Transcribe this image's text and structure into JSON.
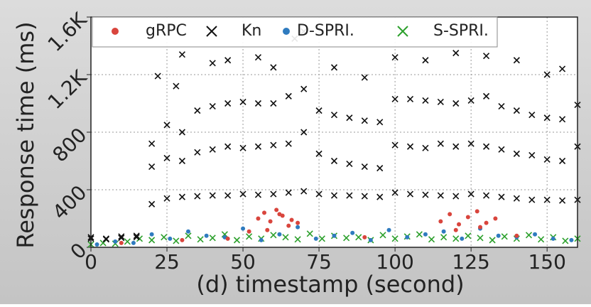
{
  "chart_data": {
    "type": "scatter",
    "title": "(d) timestamp (second)",
    "y_label": "Response time (ms)",
    "xlim": [
      0,
      160
    ],
    "ylim": [
      0,
      1600
    ],
    "xticks": [
      0,
      25,
      50,
      75,
      100,
      125,
      150
    ],
    "yticks": [
      0,
      400,
      800,
      {
        "value": 1200,
        "label": "1.2K"
      },
      {
        "value": 1600,
        "label": "1.6K"
      }
    ],
    "grid": true,
    "legend": "top",
    "series": [
      {
        "name": "gRPC",
        "color": "#d9453d",
        "marker": "o",
        "x": [
          55,
          57,
          59,
          61,
          63,
          65,
          58,
          62,
          66,
          68,
          52,
          115,
          118,
          121,
          124,
          127,
          130,
          133,
          120,
          128,
          10,
          30,
          45,
          90,
          140
        ],
        "values": [
          200,
          240,
          180,
          260,
          220,
          150,
          120,
          230,
          190,
          170,
          110,
          180,
          230,
          160,
          210,
          250,
          170,
          200,
          120,
          140,
          30,
          50,
          60,
          70,
          80
        ]
      },
      {
        "name": "Kn",
        "color": "#111111",
        "marker": "x",
        "x": [
          0,
          5,
          10,
          15,
          20,
          25,
          30,
          35,
          40,
          45,
          50,
          55,
          60,
          65,
          70,
          75,
          80,
          85,
          90,
          95,
          100,
          105,
          110,
          115,
          120,
          125,
          130,
          135,
          140,
          145,
          150,
          155,
          160,
          0,
          5,
          10,
          15,
          20,
          25,
          30,
          35,
          40,
          45,
          50,
          55,
          60,
          65,
          70,
          75,
          80,
          85,
          90,
          95,
          100,
          105,
          110,
          115,
          120,
          125,
          130,
          135,
          140,
          145,
          150,
          155,
          160,
          20,
          25,
          30,
          35,
          40,
          45,
          50,
          55,
          60,
          65,
          70,
          75,
          80,
          85,
          90,
          95,
          100,
          105,
          110,
          115,
          120,
          125,
          130,
          135,
          140,
          145,
          150,
          155,
          160,
          22,
          28,
          30,
          40,
          45,
          55,
          60,
          67,
          70,
          80,
          90,
          100,
          110,
          120,
          130,
          140,
          150,
          155
        ],
        "values": [
          60,
          55,
          65,
          70,
          300,
          340,
          350,
          355,
          360,
          360,
          370,
          365,
          370,
          380,
          390,
          370,
          360,
          360,
          355,
          350,
          380,
          370,
          365,
          360,
          355,
          370,
          360,
          350,
          340,
          330,
          330,
          325,
          330,
          70,
          60,
          75,
          80,
          560,
          620,
          600,
          660,
          680,
          700,
          690,
          700,
          710,
          720,
          800,
          650,
          600,
          580,
          560,
          550,
          710,
          700,
          690,
          720,
          700,
          720,
          700,
          680,
          650,
          640,
          610,
          600,
          700,
          720,
          850,
          800,
          950,
          980,
          1000,
          1010,
          1000,
          1000,
          1050,
          1100,
          950,
          920,
          900,
          880,
          870,
          1030,
          1030,
          1020,
          1010,
          1000,
          1020,
          1050,
          980,
          950,
          920,
          900,
          890,
          990,
          1190,
          1120,
          1340,
          1280,
          1300,
          1320,
          1250,
          1450,
          1500,
          1250,
          1180,
          1320,
          1300,
          1350,
          1330,
          1300,
          1200,
          1240
        ]
      },
      {
        "name": "D-SPRI.",
        "color": "#2f7bbf",
        "marker": "o",
        "x": [
          2,
          8,
          14,
          20,
          26,
          32,
          38,
          44,
          50,
          56,
          62,
          68,
          74,
          80,
          86,
          92,
          98,
          104,
          110,
          116,
          122,
          128,
          134,
          140,
          146,
          152,
          158
        ],
        "values": [
          20,
          40,
          30,
          90,
          60,
          110,
          80,
          70,
          130,
          50,
          90,
          140,
          60,
          80,
          100,
          50,
          120,
          70,
          90,
          110,
          60,
          130,
          80,
          70,
          90,
          60,
          50
        ]
      },
      {
        "name": "S-SPRI.",
        "color": "#2ca02c",
        "marker": "x",
        "x": [
          0,
          4,
          8,
          12,
          16,
          20,
          24,
          28,
          32,
          36,
          40,
          44,
          48,
          52,
          56,
          60,
          64,
          68,
          72,
          76,
          80,
          84,
          88,
          92,
          96,
          100,
          104,
          108,
          112,
          116,
          120,
          124,
          128,
          132,
          136,
          140,
          144,
          148,
          152,
          156,
          160
        ],
        "values": [
          20,
          30,
          25,
          40,
          60,
          50,
          70,
          45,
          80,
          55,
          65,
          90,
          50,
          75,
          60,
          85,
          70,
          55,
          95,
          60,
          80,
          65,
          70,
          50,
          85,
          60,
          75,
          90,
          55,
          70,
          60,
          80,
          65,
          50,
          75,
          60,
          85,
          55,
          70,
          45,
          60
        ]
      }
    ]
  }
}
